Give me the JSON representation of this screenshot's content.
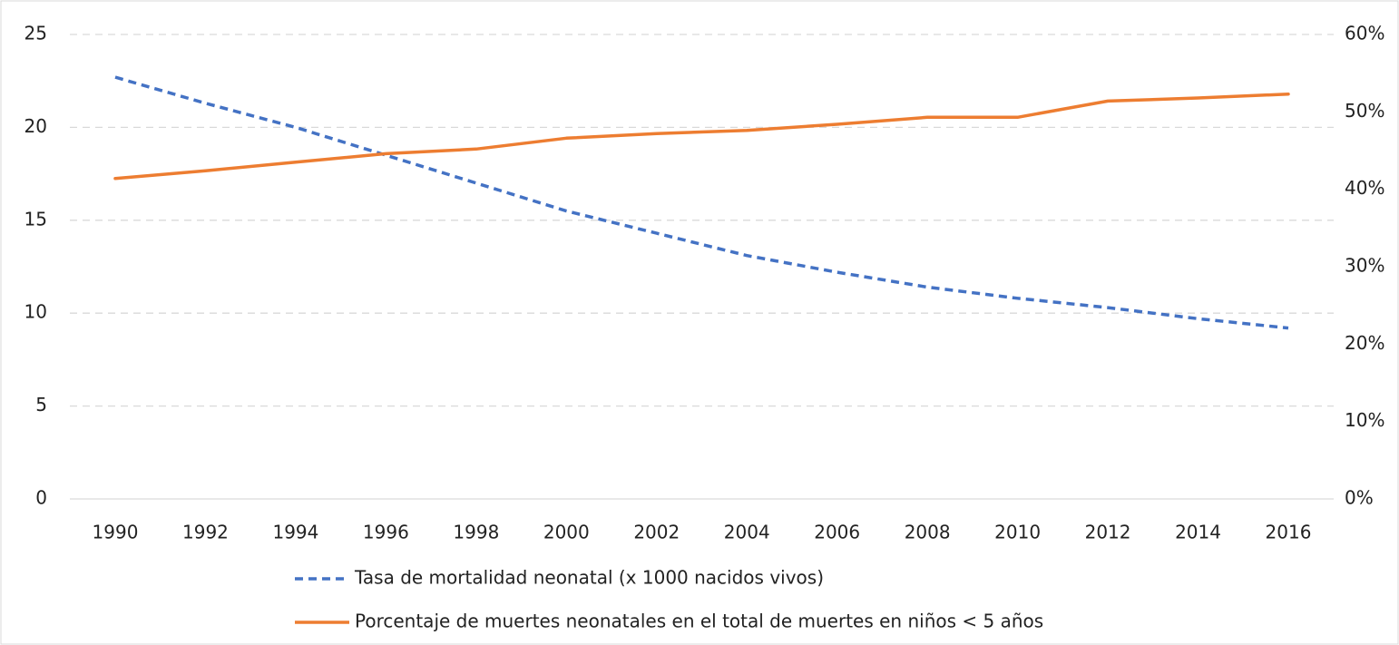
{
  "chart_data": {
    "type": "line",
    "categories": [
      1990,
      1992,
      1994,
      1996,
      1998,
      2000,
      2002,
      2004,
      2006,
      2008,
      2010,
      2012,
      2014,
      2016
    ],
    "series": [
      {
        "name": "Tasa de mortalidad neonatal (x 1000 nacidos vivos)",
        "color": "#4472c4",
        "dash": true,
        "values": [
          22.7,
          21.3,
          20.0,
          18.5,
          17.0,
          15.5,
          14.3,
          13.1,
          12.2,
          11.4,
          10.8,
          10.3,
          9.7,
          9.2
        ]
      },
      {
        "name": "Porcentaje de muertes neonatales en el total de muertes en niños < 5 años",
        "color": "#ed7d31",
        "axis": "y2",
        "values": [
          41.4,
          42.4,
          43.5,
          44.6,
          45.2,
          46.6,
          47.2,
          47.6,
          48.4,
          49.3,
          49.3,
          51.4,
          51.8,
          52.3
        ]
      }
    ],
    "ylim": [
      0,
      25
    ],
    "yticks": [
      0,
      5,
      10,
      15,
      20,
      25
    ],
    "y2lim": [
      0,
      60
    ],
    "y2ticks": [
      {
        "value": 0,
        "label": "0%"
      },
      {
        "value": 10,
        "label": "10%"
      },
      {
        "value": 20,
        "label": "20%"
      },
      {
        "value": 30,
        "label": "30%"
      },
      {
        "value": 40,
        "label": "40%"
      },
      {
        "value": 50,
        "label": "50%"
      },
      {
        "value": 60,
        "label": "60%"
      }
    ],
    "grid": true,
    "legend": "bottom"
  }
}
